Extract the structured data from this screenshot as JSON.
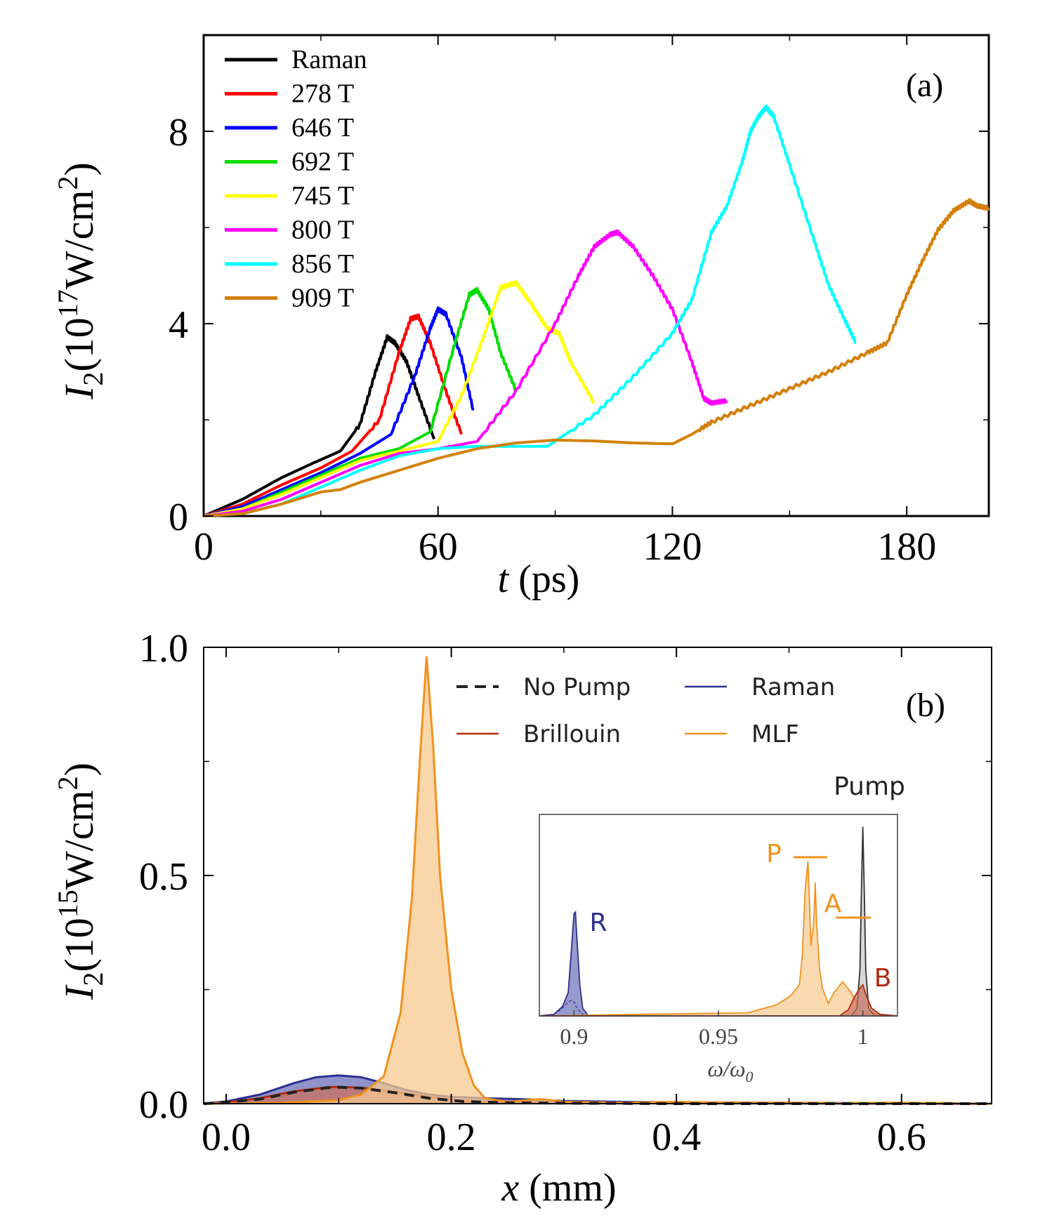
{
  "chart_data": [
    {
      "panel": "(a)",
      "type": "line",
      "title": "",
      "xlabel_var": "t",
      "xlabel_unit": "(ps)",
      "ylabel_var": "I",
      "ylabel_sub": "2",
      "ylabel_pre": "(10",
      "ylabel_exp": "17",
      "ylabel_mid": "W/cm",
      "ylabel_exp2": "2",
      "ylabel_post": ")",
      "xlim": [
        0,
        201
      ],
      "ylim": [
        0,
        10
      ],
      "xticks": [
        "0",
        "60",
        "120",
        "180"
      ],
      "xtick_values": [
        0,
        60,
        120,
        180
      ],
      "yticks": [
        "0",
        "4",
        "8"
      ],
      "ytick_values": [
        0,
        4,
        8
      ],
      "legend_position": "top-left",
      "series": [
        {
          "name": "Raman",
          "color": "#000000",
          "x": [
            0,
            10,
            20,
            28,
            35,
            40,
            44,
            47,
            49,
            52,
            55,
            59
          ],
          "y": [
            0,
            0.35,
            0.8,
            1.1,
            1.35,
            1.9,
            3.0,
            3.72,
            3.6,
            3.2,
            2.5,
            1.6
          ]
        },
        {
          "name": "278 T",
          "color": "#ff0000",
          "x": [
            0,
            10,
            20,
            30,
            38,
            45,
            50,
            53,
            55,
            58,
            62,
            66
          ],
          "y": [
            0,
            0.25,
            0.65,
            1.0,
            1.35,
            2.0,
            3.4,
            4.1,
            4.15,
            3.6,
            2.6,
            1.7
          ]
        },
        {
          "name": "646 T",
          "color": "#0000ff",
          "x": [
            0,
            10,
            20,
            30,
            40,
            48,
            54,
            58,
            60,
            62,
            66,
            69
          ],
          "y": [
            0,
            0.2,
            0.55,
            0.9,
            1.3,
            1.7,
            2.9,
            3.9,
            4.3,
            4.2,
            3.3,
            2.2
          ]
        },
        {
          "name": "692 T",
          "color": "#00dd00",
          "x": [
            0,
            10,
            20,
            30,
            40,
            50,
            58,
            64,
            68,
            70,
            73,
            76,
            80
          ],
          "y": [
            0,
            0.15,
            0.5,
            0.85,
            1.2,
            1.4,
            1.75,
            3.5,
            4.6,
            4.7,
            4.3,
            3.4,
            2.6
          ]
        },
        {
          "name": "745 T",
          "color": "#ffff00",
          "x": [
            0,
            10,
            20,
            30,
            40,
            50,
            60,
            66,
            72,
            76,
            80,
            84,
            88,
            91,
            94,
            100
          ],
          "y": [
            0,
            0.15,
            0.45,
            0.8,
            1.15,
            1.35,
            1.55,
            2.5,
            3.8,
            4.75,
            4.85,
            4.4,
            3.9,
            3.8,
            3.2,
            2.35
          ]
        },
        {
          "name": "800 T",
          "color": "#ff00ff",
          "x": [
            0,
            10,
            20,
            30,
            40,
            50,
            60,
            70,
            80,
            90,
            96,
            100,
            104,
            106,
            110,
            115,
            120,
            125,
            128,
            130,
            134
          ],
          "y": [
            0,
            0.1,
            0.35,
            0.7,
            1.05,
            1.3,
            1.4,
            1.55,
            2.6,
            4.0,
            5.0,
            5.6,
            5.85,
            5.9,
            5.6,
            5.0,
            4.3,
            3.2,
            2.45,
            2.35,
            2.4
          ]
        },
        {
          "name": "856 T",
          "color": "#00ffff",
          "x": [
            0,
            10,
            20,
            30,
            40,
            50,
            60,
            70,
            80,
            88,
            100,
            110,
            120,
            125,
            130,
            134,
            138,
            140,
            142,
            144,
            146,
            150,
            156,
            160,
            164,
            167
          ],
          "y": [
            0,
            0.05,
            0.25,
            0.6,
            0.95,
            1.25,
            1.4,
            1.45,
            1.45,
            1.45,
            2.1,
            2.9,
            3.8,
            4.5,
            5.9,
            6.45,
            7.4,
            8.0,
            8.3,
            8.5,
            8.3,
            7.3,
            5.8,
            4.8,
            4.1,
            3.6
          ]
        },
        {
          "name": "909 T",
          "color": "#d4800a",
          "x": [
            0,
            10,
            20,
            30,
            35,
            40,
            50,
            60,
            70,
            80,
            90,
            100,
            110,
            120,
            125,
            130,
            140,
            150,
            160,
            170,
            175,
            180,
            184,
            188,
            192,
            196,
            198,
            201
          ],
          "y": [
            0,
            0.05,
            0.25,
            0.5,
            0.55,
            0.7,
            0.95,
            1.2,
            1.4,
            1.52,
            1.58,
            1.56,
            1.52,
            1.5,
            1.7,
            1.95,
            2.3,
            2.65,
            3.0,
            3.4,
            3.6,
            4.6,
            5.3,
            5.95,
            6.35,
            6.55,
            6.45,
            6.4
          ]
        }
      ]
    },
    {
      "panel": "(b)",
      "type": "area",
      "title": "",
      "xlabel_var": "x",
      "xlabel_unit": "(mm)",
      "ylabel_var": "I",
      "ylabel_sub": "2",
      "ylabel_pre": "(10",
      "ylabel_exp": "15",
      "ylabel_mid": "W/cm",
      "ylabel_exp2": "2",
      "ylabel_post": ")",
      "xlim": [
        -0.02,
        0.68
      ],
      "ylim": [
        0,
        1.0
      ],
      "xticks": [
        "0.0",
        "0.2",
        "0.4",
        "0.6"
      ],
      "xtick_values": [
        0.0,
        0.2,
        0.4,
        0.6
      ],
      "yticks": [
        "0.0",
        "0.5",
        "1.0"
      ],
      "ytick_values": [
        0.0,
        0.5,
        1.0
      ],
      "legend_position": "top-right",
      "series": [
        {
          "name": "No Pump",
          "color": "#222222",
          "style": "dashed",
          "x": [
            -0.02,
            0.0,
            0.03,
            0.06,
            0.09,
            0.1,
            0.12,
            0.15,
            0.18,
            0.21,
            0.25,
            0.3,
            0.4,
            0.5,
            0.6,
            0.68
          ],
          "y": [
            0,
            0.003,
            0.01,
            0.025,
            0.035,
            0.036,
            0.034,
            0.024,
            0.012,
            0.005,
            0.002,
            0.001,
            0,
            0,
            0,
            0
          ]
        },
        {
          "name": "Raman",
          "color": "#2b2f8f",
          "fill": "#6a6fb8",
          "x": [
            -0.02,
            0.0,
            0.03,
            0.06,
            0.08,
            0.1,
            0.12,
            0.14,
            0.16,
            0.18,
            0.2,
            0.23,
            0.26,
            0.3,
            0.35,
            0.4,
            0.5,
            0.6,
            0.68
          ],
          "y": [
            0,
            0.005,
            0.02,
            0.045,
            0.058,
            0.062,
            0.058,
            0.045,
            0.03,
            0.02,
            0.015,
            0.012,
            0.01,
            0.006,
            0.004,
            0.003,
            0.002,
            0.001,
            0
          ]
        },
        {
          "name": "Brillouin",
          "color": "#b22a0e",
          "fill": "#c87060",
          "x": [
            -0.02,
            0.0,
            0.03,
            0.06,
            0.09,
            0.1,
            0.12,
            0.15,
            0.18,
            0.21,
            0.25,
            0.3,
            0.68
          ],
          "y": [
            0,
            0.003,
            0.012,
            0.027,
            0.036,
            0.037,
            0.035,
            0.026,
            0.014,
            0.006,
            0.003,
            0.001,
            0
          ]
        },
        {
          "name": "MLF",
          "color": "#f0921e",
          "fill": "#f7c98f",
          "x": [
            -0.02,
            0.05,
            0.1,
            0.12,
            0.14,
            0.155,
            0.165,
            0.172,
            0.178,
            0.184,
            0.19,
            0.2,
            0.21,
            0.22,
            0.23,
            0.25,
            0.28,
            0.3,
            0.35,
            0.4,
            0.45,
            0.5,
            0.55,
            0.6,
            0.65,
            0.68
          ],
          "y": [
            0,
            0.002,
            0.008,
            0.02,
            0.06,
            0.2,
            0.45,
            0.75,
            0.98,
            0.78,
            0.5,
            0.25,
            0.11,
            0.04,
            0.012,
            0.004,
            0.01,
            0.004,
            0.002,
            0.004,
            0.002,
            0.002,
            0.001,
            0.002,
            0.001,
            0
          ]
        }
      ],
      "inset": {
        "type": "area",
        "xlabel": "ω/ω",
        "xlabel_sub": "0",
        "xlim": [
          0.888,
          1.012
        ],
        "xticks": [
          "0.9",
          "0.95",
          "1"
        ],
        "xtick_values": [
          0.9,
          0.95,
          1.0
        ],
        "annotations": [
          "Pump",
          "P",
          "A",
          "R",
          "B"
        ],
        "series": [
          {
            "name": "Raman",
            "color": "#2b2f8f",
            "fill": "#6a6fb8",
            "x": [
              0.888,
              0.893,
              0.896,
              0.898,
              0.899,
              0.9,
              0.9005,
              0.901,
              0.902,
              0.903,
              0.905,
              1.012
            ],
            "y": [
              0,
              0.01,
              0.06,
              0.15,
              0.4,
              0.66,
              0.67,
              0.5,
              0.2,
              0.05,
              0,
              0
            ]
          },
          {
            "name": "Raman (dashed)",
            "color": "#2b2f8f",
            "style": "dashed",
            "x": [
              0.888,
              0.893,
              0.896,
              0.898,
              0.899,
              0.9,
              0.901,
              0.903,
              0.905,
              1.012
            ],
            "y": [
              0,
              0.01,
              0.05,
              0.09,
              0.1,
              0.09,
              0.05,
              0.01,
              0,
              0
            ]
          },
          {
            "name": "MLF",
            "color": "#f0921e",
            "fill": "#f7c98f",
            "x": [
              0.888,
              0.96,
              0.97,
              0.975,
              0.978,
              0.979,
              0.98,
              0.981,
              0.9815,
              0.982,
              0.983,
              0.9835,
              0.984,
              0.985,
              0.986,
              0.988,
              0.99,
              0.993,
              0.996,
              0.999,
              1.0,
              1.002,
              1.005,
              1.012
            ],
            "y": [
              0,
              0.02,
              0.07,
              0.13,
              0.2,
              0.38,
              0.8,
              1.0,
              0.75,
              0.45,
              0.6,
              0.86,
              0.6,
              0.3,
              0.18,
              0.08,
              0.15,
              0.22,
              0.15,
              0.05,
              0.02,
              0.03,
              0.01,
              0
            ]
          },
          {
            "name": "Pump",
            "color": "#333333",
            "fill": "#c8c8c8",
            "x": [
              0.888,
              0.996,
              0.998,
              0.999,
              0.9995,
              1.0,
              1.0005,
              1.001,
              1.002,
              1.004,
              1.012
            ],
            "y": [
              0,
              0,
              0.05,
              0.3,
              0.8,
              1.22,
              0.8,
              0.3,
              0.05,
              0,
              0
            ]
          },
          {
            "name": "Brillouin",
            "color": "#b22a0e",
            "fill": "#c87060",
            "x": [
              0.888,
              0.992,
              0.995,
              0.997,
              0.999,
              1.0,
              1.001,
              1.003,
              1.006,
              1.012
            ],
            "y": [
              0,
              0,
              0.04,
              0.12,
              0.18,
              0.2,
              0.14,
              0.05,
              0.01,
              0
            ]
          }
        ]
      }
    }
  ]
}
